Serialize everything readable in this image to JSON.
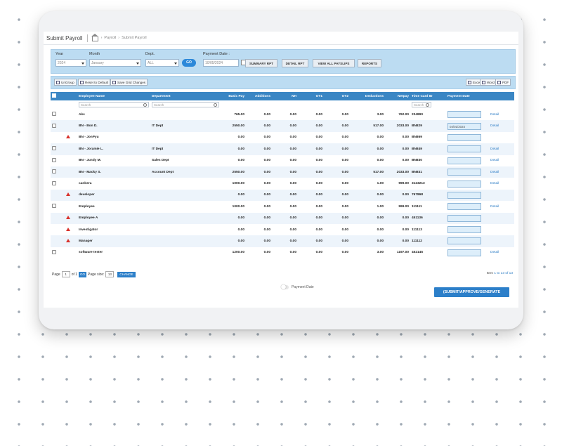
{
  "header": {
    "title": "Submit Payroll",
    "breadcrumb": [
      "Payroll",
      "Submit Payroll"
    ]
  },
  "filters": {
    "year_label": "Year",
    "year_value": "2024",
    "month_label": "Month",
    "month_value": "January",
    "dept_label": "Dept.",
    "dept_value": "ALL",
    "payment_date_label": "Payment Date :",
    "payment_date_value": "10/05/2024",
    "go_label": "GO",
    "buttons": [
      "SUMMARY RPT",
      "DETAIL RPT",
      "VIEW ALL PAYSLIPS",
      "REPORTS"
    ]
  },
  "toolbar": {
    "ungroup": "UnGroup",
    "reset": "Reset to Default",
    "save_grid": "Save Grid Changes",
    "excel": "Excel",
    "word": "Word",
    "pdf": "PDF"
  },
  "columns": [
    "Employee Name",
    "Department",
    "Basic Pay",
    "Additions",
    "NH",
    "OT1",
    "OT2",
    "Deductions",
    "Netpay",
    "Time Card ID",
    "Payment Date"
  ],
  "search_placeholder": "Search",
  "rows": [
    {
      "name": "Aks",
      "dept": "",
      "basic": "765.00",
      "add": "0.00",
      "nh": "0.00",
      "ot1": "0.00",
      "ot2": "0.00",
      "ded": "3.00",
      "net": "762.00",
      "tcid": "234890",
      "pdate": "",
      "detail": "Detail",
      "warn": false
    },
    {
      "name": "BN - Bon D.",
      "dept": "IT Dept",
      "basic": "2550.00",
      "add": "0.00",
      "nh": "0.00",
      "ot1": "0.00",
      "ot2": "0.00",
      "ded": "517.00",
      "net": "2033.00",
      "tcid": "BN829",
      "pdate": "04/01/2024",
      "detail": "Detail",
      "warn": false
    },
    {
      "name": "BN - JonPyu",
      "dept": "",
      "basic": "0.00",
      "add": "0.00",
      "nh": "0.00",
      "ot1": "0.00",
      "ot2": "0.00",
      "ded": "0.00",
      "net": "0.00",
      "tcid": "BN869",
      "pdate": "",
      "detail": "",
      "warn": true
    },
    {
      "name": "BN - Joramie L.",
      "dept": "IT Dept",
      "basic": "0.00",
      "add": "0.00",
      "nh": "0.00",
      "ot1": "0.00",
      "ot2": "0.00",
      "ded": "0.00",
      "net": "0.00",
      "tcid": "BN849",
      "pdate": "",
      "detail": "Detail",
      "warn": false
    },
    {
      "name": "BN - Jundy M.",
      "dept": "Sales Dept",
      "basic": "0.00",
      "add": "0.00",
      "nh": "0.00",
      "ot1": "0.00",
      "ot2": "0.00",
      "ded": "0.00",
      "net": "0.00",
      "tcid": "BN830",
      "pdate": "",
      "detail": "Detail",
      "warn": false
    },
    {
      "name": "BN - Macky S.",
      "dept": "Account Dept",
      "basic": "2550.00",
      "add": "0.00",
      "nh": "0.00",
      "ot1": "0.00",
      "ot2": "0.00",
      "ded": "517.00",
      "net": "2033.00",
      "tcid": "BN831",
      "pdate": "",
      "detail": "Detail",
      "warn": false
    },
    {
      "name": "canbera",
      "dept": "",
      "basic": "1000.00",
      "add": "0.00",
      "nh": "0.00",
      "ot1": "0.00",
      "ot2": "0.00",
      "ded": "1.00",
      "net": "999.00",
      "tcid": "3123213",
      "pdate": "",
      "detail": "Detail",
      "warn": false
    },
    {
      "name": "developer",
      "dept": "",
      "basic": "0.00",
      "add": "0.00",
      "nh": "0.00",
      "ot1": "0.00",
      "ot2": "0.00",
      "ded": "0.00",
      "net": "0.00",
      "tcid": "767868",
      "pdate": "",
      "detail": "",
      "warn": true
    },
    {
      "name": "Employee",
      "dept": "",
      "basic": "1000.00",
      "add": "0.00",
      "nh": "0.00",
      "ot1": "0.00",
      "ot2": "0.00",
      "ded": "1.00",
      "net": "999.00",
      "tcid": "111111",
      "pdate": "",
      "detail": "Detail",
      "warn": false
    },
    {
      "name": "Employee A",
      "dept": "",
      "basic": "0.00",
      "add": "0.00",
      "nh": "0.00",
      "ot1": "0.00",
      "ot2": "0.00",
      "ded": "0.00",
      "net": "0.00",
      "tcid": "451136",
      "pdate": "",
      "detail": "",
      "warn": true
    },
    {
      "name": "Investigator",
      "dept": "",
      "basic": "0.00",
      "add": "0.00",
      "nh": "0.00",
      "ot1": "0.00",
      "ot2": "0.00",
      "ded": "0.00",
      "net": "0.00",
      "tcid": "111113",
      "pdate": "",
      "detail": "",
      "warn": true
    },
    {
      "name": "Manager",
      "dept": "",
      "basic": "0.00",
      "add": "0.00",
      "nh": "0.00",
      "ot1": "0.00",
      "ot2": "0.00",
      "ded": "0.00",
      "net": "0.00",
      "tcid": "111112",
      "pdate": "",
      "detail": "",
      "warn": true
    },
    {
      "name": "software tester",
      "dept": "",
      "basic": "1200.00",
      "add": "0.00",
      "nh": "0.00",
      "ot1": "0.00",
      "ot2": "0.00",
      "ded": "3.00",
      "net": "1197.00",
      "tcid": "452145",
      "pdate": "",
      "detail": "Detail",
      "warn": false
    }
  ],
  "pager": {
    "page_label": "Page",
    "page_value": "1",
    "of_label": "of 1",
    "go_label": "GO",
    "size_label": "Page size:",
    "size_value": "13",
    "change_label": "CHANGE",
    "item_prefix": "Item",
    "item_range": "1 to 13 of 13"
  },
  "footer": {
    "toggle_label": "Payment Date",
    "submit_label": "(SUBMIT/APPROVE/GENERATE PAYROLL)"
  }
}
